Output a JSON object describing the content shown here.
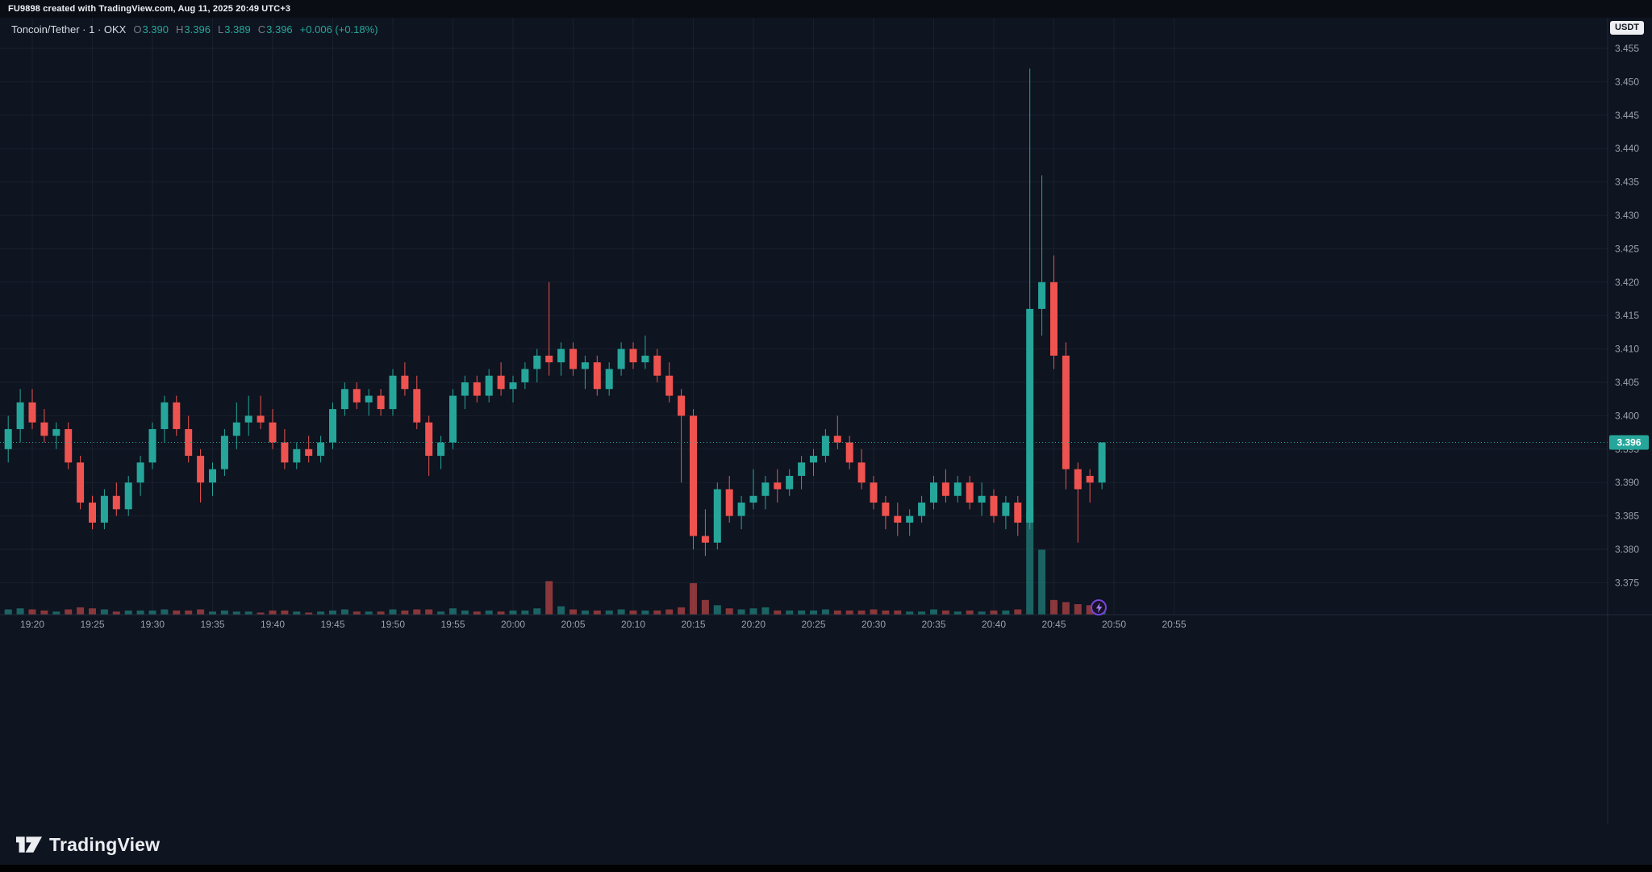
{
  "header": {
    "attribution": "FU9898 created with TradingView.com, Aug 11, 2025 20:49 UTC+3"
  },
  "legend": {
    "title": "Toncoin/Tether · 1 · OKX",
    "ohlc": {
      "o_label": "O",
      "o": "3.390",
      "h_label": "H",
      "h": "3.396",
      "l_label": "L",
      "l": "3.389",
      "c_label": "C",
      "c": "3.396",
      "change": "+0.006 (+0.18%)"
    }
  },
  "price_scale": {
    "currency_label": "USDT",
    "last_price_label": "3.396"
  },
  "footer": {
    "brand": "TradingView"
  },
  "icons": {
    "flash": "lightning-bolt"
  },
  "colors": {
    "bg": "#0e1420",
    "up": "#26a69a",
    "down": "#ef5350",
    "vol_up": "rgba(38,166,154,0.55)",
    "vol_down": "rgba(239,83,80,0.55)",
    "grid": "rgba(240,243,250,0.055)",
    "axis_border": "#232c3d",
    "axis_text": "#9aa2ae",
    "badge_text": "#ffffff"
  },
  "chart_data": {
    "type": "candlestick",
    "symbol": "Toncoin/Tether",
    "exchange": "OKX",
    "interval": "1 minute",
    "title": "Toncoin/Tether · 1 · OKX",
    "last_price": 3.396,
    "ylim": [
      3.372,
      3.458
    ],
    "grid": true,
    "volume_pane": true,
    "y_ticks": [
      "3.455",
      "3.450",
      "3.445",
      "3.440",
      "3.435",
      "3.430",
      "3.425",
      "3.420",
      "3.415",
      "3.410",
      "3.405",
      "3.400",
      "3.395",
      "3.390",
      "3.385",
      "3.380",
      "3.375"
    ],
    "x_ticks": [
      "19:20",
      "19:25",
      "19:30",
      "19:35",
      "19:40",
      "19:45",
      "19:50",
      "19:55",
      "20:00",
      "20:05",
      "20:10",
      "20:15",
      "20:20",
      "20:25",
      "20:30",
      "20:35",
      "20:40",
      "20:45",
      "20:50",
      "20:55"
    ],
    "columns": [
      "time",
      "open",
      "high",
      "low",
      "close",
      "volume_rel"
    ],
    "candles": [
      [
        "19:18",
        3.395,
        3.4,
        3.393,
        3.398,
        0.05
      ],
      [
        "19:19",
        3.398,
        3.404,
        3.396,
        3.402,
        0.06
      ],
      [
        "19:20",
        3.402,
        3.404,
        3.398,
        3.399,
        0.05
      ],
      [
        "19:21",
        3.399,
        3.401,
        3.396,
        3.397,
        0.04
      ],
      [
        "19:22",
        3.397,
        3.399,
        3.395,
        3.398,
        0.03
      ],
      [
        "19:23",
        3.398,
        3.399,
        3.392,
        3.393,
        0.05
      ],
      [
        "19:24",
        3.393,
        3.394,
        3.386,
        3.387,
        0.07
      ],
      [
        "19:25",
        3.387,
        3.388,
        3.383,
        3.384,
        0.06
      ],
      [
        "19:26",
        3.384,
        3.389,
        3.383,
        3.388,
        0.05
      ],
      [
        "19:27",
        3.388,
        3.39,
        3.385,
        3.386,
        0.03
      ],
      [
        "19:28",
        3.386,
        3.391,
        3.385,
        3.39,
        0.04
      ],
      [
        "19:29",
        3.39,
        3.394,
        3.388,
        3.393,
        0.04
      ],
      [
        "19:30",
        3.393,
        3.399,
        3.392,
        3.398,
        0.04
      ],
      [
        "19:31",
        3.398,
        3.403,
        3.396,
        3.402,
        0.05
      ],
      [
        "19:32",
        3.402,
        3.403,
        3.397,
        3.398,
        0.04
      ],
      [
        "19:33",
        3.398,
        3.4,
        3.393,
        3.394,
        0.04
      ],
      [
        "19:34",
        3.394,
        3.395,
        3.387,
        3.39,
        0.05
      ],
      [
        "19:35",
        3.39,
        3.393,
        3.388,
        3.392,
        0.03
      ],
      [
        "19:36",
        3.392,
        3.398,
        3.391,
        3.397,
        0.04
      ],
      [
        "19:37",
        3.397,
        3.402,
        3.395,
        3.399,
        0.03
      ],
      [
        "19:38",
        3.399,
        3.403,
        3.397,
        3.4,
        0.03
      ],
      [
        "19:39",
        3.4,
        3.403,
        3.398,
        3.399,
        0.02
      ],
      [
        "19:40",
        3.399,
        3.401,
        3.395,
        3.396,
        0.04
      ],
      [
        "19:41",
        3.396,
        3.398,
        3.392,
        3.393,
        0.04
      ],
      [
        "19:42",
        3.393,
        3.396,
        3.392,
        3.395,
        0.03
      ],
      [
        "19:43",
        3.395,
        3.397,
        3.393,
        3.394,
        0.02
      ],
      [
        "19:44",
        3.394,
        3.397,
        3.393,
        3.396,
        0.03
      ],
      [
        "19:45",
        3.396,
        3.402,
        3.395,
        3.401,
        0.04
      ],
      [
        "19:46",
        3.401,
        3.405,
        3.4,
        3.404,
        0.05
      ],
      [
        "19:47",
        3.404,
        3.405,
        3.401,
        3.402,
        0.03
      ],
      [
        "19:48",
        3.402,
        3.404,
        3.4,
        3.403,
        0.03
      ],
      [
        "19:49",
        3.403,
        3.404,
        3.4,
        3.401,
        0.03
      ],
      [
        "19:50",
        3.401,
        3.407,
        3.4,
        3.406,
        0.05
      ],
      [
        "19:51",
        3.406,
        3.408,
        3.403,
        3.404,
        0.04
      ],
      [
        "19:52",
        3.404,
        3.406,
        3.398,
        3.399,
        0.05
      ],
      [
        "19:53",
        3.399,
        3.4,
        3.391,
        3.394,
        0.05
      ],
      [
        "19:54",
        3.394,
        3.397,
        3.392,
        3.396,
        0.03
      ],
      [
        "19:55",
        3.396,
        3.404,
        3.395,
        3.403,
        0.06
      ],
      [
        "19:56",
        3.403,
        3.406,
        3.401,
        3.405,
        0.04
      ],
      [
        "19:57",
        3.405,
        3.406,
        3.402,
        3.403,
        0.03
      ],
      [
        "19:58",
        3.403,
        3.407,
        3.402,
        3.406,
        0.04
      ],
      [
        "19:59",
        3.406,
        3.408,
        3.403,
        3.404,
        0.03
      ],
      [
        "20:00",
        3.404,
        3.406,
        3.402,
        3.405,
        0.04
      ],
      [
        "20:01",
        3.405,
        3.408,
        3.404,
        3.407,
        0.04
      ],
      [
        "20:02",
        3.407,
        3.41,
        3.405,
        3.409,
        0.06
      ],
      [
        "20:03",
        3.409,
        3.42,
        3.406,
        3.408,
        0.32
      ],
      [
        "20:04",
        3.408,
        3.411,
        3.406,
        3.41,
        0.08
      ],
      [
        "20:05",
        3.41,
        3.411,
        3.406,
        3.407,
        0.05
      ],
      [
        "20:06",
        3.407,
        3.409,
        3.404,
        3.408,
        0.04
      ],
      [
        "20:07",
        3.408,
        3.409,
        3.403,
        3.404,
        0.04
      ],
      [
        "20:08",
        3.404,
        3.408,
        3.403,
        3.407,
        0.04
      ],
      [
        "20:09",
        3.407,
        3.411,
        3.406,
        3.41,
        0.05
      ],
      [
        "20:10",
        3.41,
        3.411,
        3.407,
        3.408,
        0.04
      ],
      [
        "20:11",
        3.408,
        3.412,
        3.407,
        3.409,
        0.04
      ],
      [
        "20:12",
        3.409,
        3.41,
        3.405,
        3.406,
        0.04
      ],
      [
        "20:13",
        3.406,
        3.408,
        3.402,
        3.403,
        0.05
      ],
      [
        "20:14",
        3.403,
        3.404,
        3.39,
        3.4,
        0.07
      ],
      [
        "20:15",
        3.4,
        3.401,
        3.38,
        3.382,
        0.3
      ],
      [
        "20:16",
        3.382,
        3.386,
        3.379,
        3.381,
        0.14
      ],
      [
        "20:17",
        3.381,
        3.39,
        3.38,
        3.389,
        0.09
      ],
      [
        "20:18",
        3.389,
        3.391,
        3.384,
        3.385,
        0.06
      ],
      [
        "20:19",
        3.385,
        3.388,
        3.383,
        3.387,
        0.05
      ],
      [
        "20:20",
        3.387,
        3.392,
        3.386,
        3.388,
        0.06
      ],
      [
        "20:21",
        3.388,
        3.391,
        3.386,
        3.39,
        0.07
      ],
      [
        "20:22",
        3.39,
        3.392,
        3.387,
        3.389,
        0.04
      ],
      [
        "20:23",
        3.389,
        3.392,
        3.388,
        3.391,
        0.04
      ],
      [
        "20:24",
        3.391,
        3.394,
        3.389,
        3.393,
        0.04
      ],
      [
        "20:25",
        3.393,
        3.395,
        3.391,
        3.394,
        0.04
      ],
      [
        "20:26",
        3.394,
        3.398,
        3.393,
        3.397,
        0.05
      ],
      [
        "20:27",
        3.397,
        3.4,
        3.395,
        3.396,
        0.04
      ],
      [
        "20:28",
        3.396,
        3.397,
        3.392,
        3.393,
        0.04
      ],
      [
        "20:29",
        3.393,
        3.395,
        3.389,
        3.39,
        0.04
      ],
      [
        "20:30",
        3.39,
        3.391,
        3.386,
        3.387,
        0.05
      ],
      [
        "20:31",
        3.387,
        3.388,
        3.383,
        3.385,
        0.04
      ],
      [
        "20:32",
        3.385,
        3.387,
        3.382,
        3.384,
        0.04
      ],
      [
        "20:33",
        3.384,
        3.386,
        3.382,
        3.385,
        0.03
      ],
      [
        "20:34",
        3.385,
        3.388,
        3.384,
        3.387,
        0.03
      ],
      [
        "20:35",
        3.387,
        3.391,
        3.386,
        3.39,
        0.05
      ],
      [
        "20:36",
        3.39,
        3.392,
        3.387,
        3.388,
        0.04
      ],
      [
        "20:37",
        3.388,
        3.391,
        3.387,
        3.39,
        0.03
      ],
      [
        "20:38",
        3.39,
        3.391,
        3.386,
        3.387,
        0.04
      ],
      [
        "20:39",
        3.387,
        3.39,
        3.385,
        3.388,
        0.03
      ],
      [
        "20:40",
        3.388,
        3.389,
        3.384,
        3.385,
        0.04
      ],
      [
        "20:41",
        3.385,
        3.388,
        3.383,
        3.387,
        0.04
      ],
      [
        "20:42",
        3.387,
        3.388,
        3.382,
        3.384,
        0.05
      ],
      [
        "20:43",
        3.384,
        3.452,
        3.383,
        3.416,
        1.0
      ],
      [
        "20:44",
        3.416,
        3.436,
        3.412,
        3.42,
        0.62
      ],
      [
        "20:45",
        3.42,
        3.424,
        3.407,
        3.409,
        0.14
      ],
      [
        "20:46",
        3.409,
        3.411,
        3.389,
        3.392,
        0.12
      ],
      [
        "20:47",
        3.392,
        3.393,
        3.381,
        3.389,
        0.1
      ],
      [
        "20:48",
        3.391,
        3.392,
        3.387,
        3.39,
        0.09
      ],
      [
        "20:49",
        3.39,
        3.396,
        3.389,
        3.396,
        0.07
      ]
    ]
  }
}
